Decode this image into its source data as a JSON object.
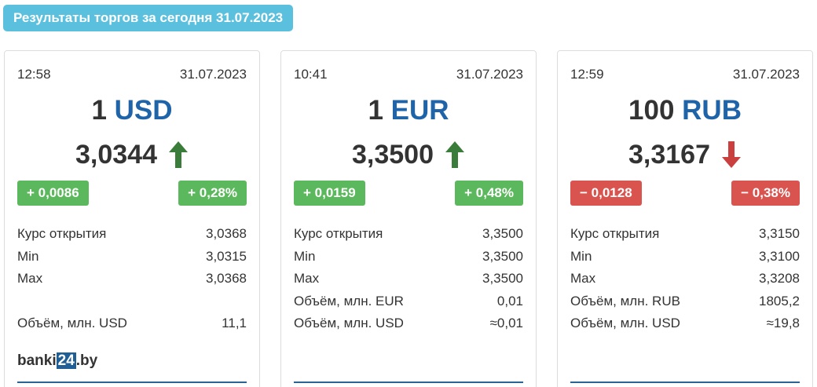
{
  "header": {
    "title": "Результаты торгов за сегодня 31.07.2023"
  },
  "cards": [
    {
      "time": "12:58",
      "date": "31.07.2023",
      "amount": "1",
      "currency": "USD",
      "rate": "3,0344",
      "trend": "up",
      "change_abs": "+ 0,0086",
      "change_pct": "+ 0,28%",
      "rows": [
        [
          "Курс открытия",
          "3,0368"
        ],
        [
          "Min",
          "3,0315"
        ],
        [
          "Max",
          "3,0368"
        ],
        [
          "Объём, млн. USD",
          "11,1"
        ]
      ]
    },
    {
      "time": "10:41",
      "date": "31.07.2023",
      "amount": "1",
      "currency": "EUR",
      "rate": "3,3500",
      "trend": "up",
      "change_abs": "+ 0,0159",
      "change_pct": "+ 0,48%",
      "rows": [
        [
          "Курс открытия",
          "3,3500"
        ],
        [
          "Min",
          "3,3500"
        ],
        [
          "Max",
          "3,3500"
        ],
        [
          "Объём, млн. EUR",
          "0,01"
        ],
        [
          "Объём, млн. USD",
          "≈0,01"
        ]
      ]
    },
    {
      "time": "12:59",
      "date": "31.07.2023",
      "amount": "100",
      "currency": "RUB",
      "rate": "3,3167",
      "trend": "down",
      "change_abs": "− 0,0128",
      "change_pct": "− 0,38%",
      "rows": [
        [
          "Курс открытия",
          "3,3150"
        ],
        [
          "Min",
          "3,3100"
        ],
        [
          "Max",
          "3,3208"
        ],
        [
          "Объём, млн. RUB",
          "1805,2"
        ],
        [
          "Объём, млн. USD",
          "≈19,8"
        ]
      ]
    }
  ],
  "logo": {
    "parts": [
      "banki",
      "24",
      ".by"
    ]
  }
}
